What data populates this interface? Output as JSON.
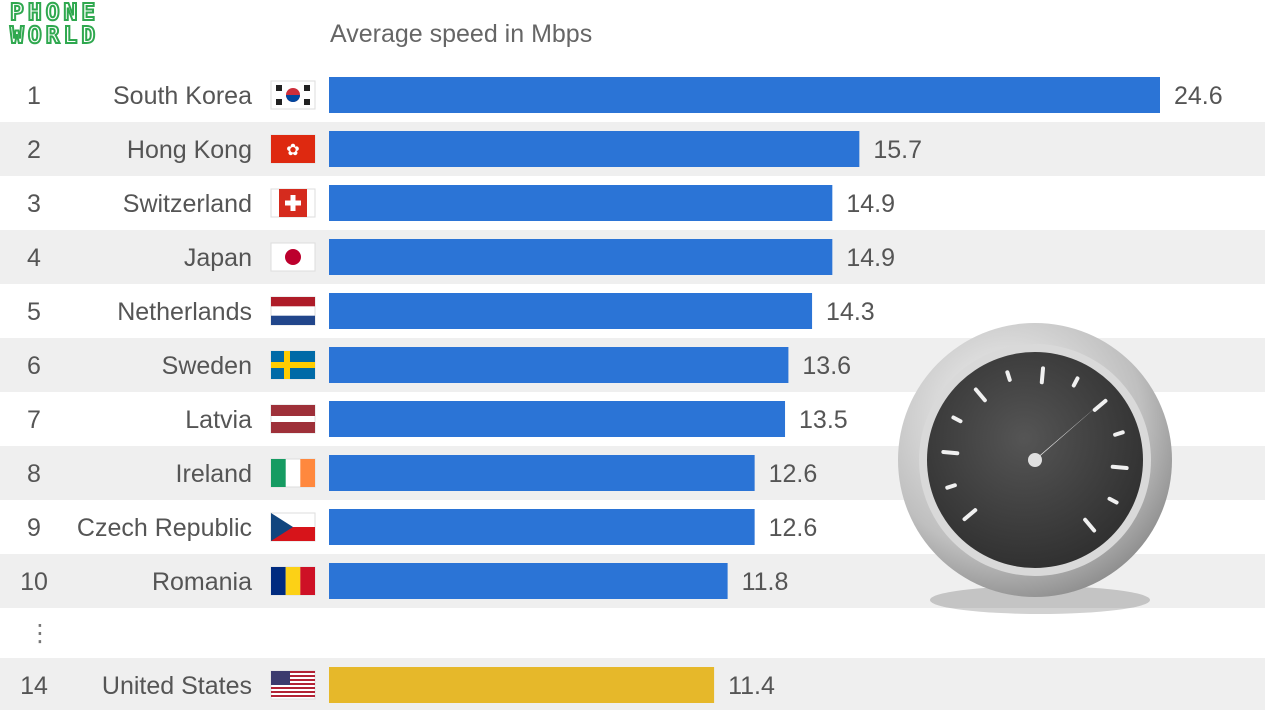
{
  "logo": {
    "line1": "PHONE",
    "line2": "WORLD"
  },
  "chart_data": {
    "type": "bar",
    "orientation": "horizontal",
    "title": "",
    "subtitle": "Average speed in Mbps",
    "categories": [
      "South Korea",
      "Hong Kong",
      "Switzerland",
      "Japan",
      "Netherlands",
      "Sweden",
      "Latvia",
      "Ireland",
      "Czech Republic",
      "Romania",
      "United States"
    ],
    "ranks": [
      "1",
      "2",
      "3",
      "4",
      "5",
      "6",
      "7",
      "8",
      "9",
      "10",
      "14"
    ],
    "values": [
      24.6,
      15.7,
      14.9,
      14.9,
      14.3,
      13.6,
      13.5,
      12.6,
      12.6,
      11.8,
      11.4
    ],
    "value_labels": [
      "24.6",
      "15.7",
      "14.9",
      "14.9",
      "14.3",
      "13.6",
      "13.5",
      "12.6",
      "12.6",
      "11.8",
      "11.4"
    ],
    "flags": [
      "south-korea-flag",
      "hong-kong-flag",
      "switzerland-flag",
      "japan-flag",
      "netherlands-flag",
      "sweden-flag",
      "latvia-flag",
      "ireland-flag",
      "czech-republic-flag",
      "romania-flag",
      "united-states-flag"
    ],
    "highlighted": [
      "United States"
    ],
    "gap_marker": "⋮",
    "xlim": [
      0,
      24.6
    ],
    "grid": false,
    "legend": "none",
    "colors": {
      "bar": "#2b74d6",
      "highlight": "#e6b82a",
      "row_alt": "#efefef",
      "text": "#555555"
    },
    "decoration": "speedometer-icon"
  }
}
